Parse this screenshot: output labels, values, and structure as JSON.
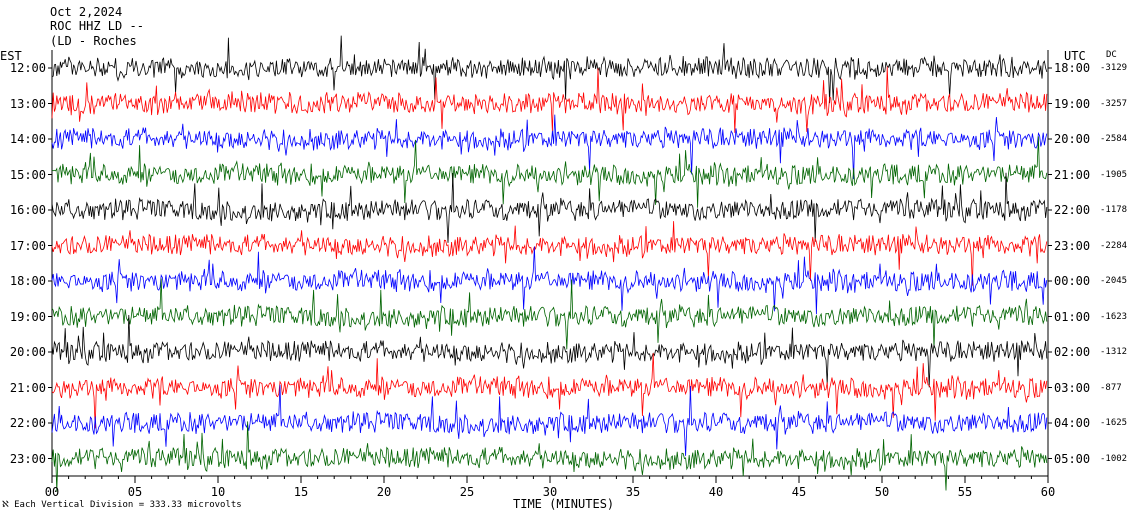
{
  "header": {
    "date": "Oct 2,2024",
    "station": "ROC HHZ LD --",
    "location": "(LD - Roches"
  },
  "labels": {
    "left_tz": "EST",
    "right_tz": "UTC",
    "dc_title": "DC"
  },
  "footer": {
    "scale": "Each Vertical Division =  333.33 microvolts"
  },
  "chart_data": {
    "type": "line",
    "title": "",
    "xlabel": "TIME (MINUTES)",
    "xlim": [
      0,
      60
    ],
    "xticks": [
      "00",
      "05",
      "10",
      "15",
      "20",
      "25",
      "30",
      "35",
      "40",
      "45",
      "50",
      "55",
      "60"
    ],
    "series_colors": [
      "#000000",
      "#ff0000",
      "#0000ff",
      "#006400"
    ],
    "rows": [
      {
        "est": "12:00",
        "utc": "18:00",
        "dc": "-3129"
      },
      {
        "est": "13:00",
        "utc": "19:00",
        "dc": "-3257"
      },
      {
        "est": "14:00",
        "utc": "20:00",
        "dc": "-2584"
      },
      {
        "est": "15:00",
        "utc": "21:00",
        "dc": "-1905"
      },
      {
        "est": "16:00",
        "utc": "22:00",
        "dc": "-1178"
      },
      {
        "est": "17:00",
        "utc": "23:00",
        "dc": "-2284"
      },
      {
        "est": "18:00",
        "utc": "00:00",
        "dc": "-2045"
      },
      {
        "est": "19:00",
        "utc": "01:00",
        "dc": "-1623"
      },
      {
        "est": "20:00",
        "utc": "02:00",
        "dc": "-1312"
      },
      {
        "est": "21:00",
        "utc": "03:00",
        "dc": "-877"
      },
      {
        "est": "22:00",
        "utc": "04:00",
        "dc": "-1625"
      },
      {
        "est": "23:00",
        "utc": "05:00",
        "dc": "-1002"
      }
    ]
  }
}
